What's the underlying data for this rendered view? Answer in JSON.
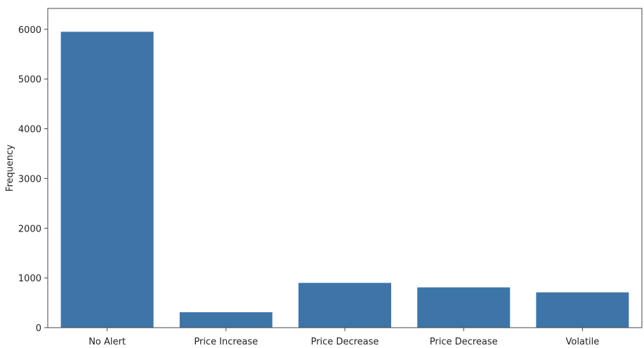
{
  "chart_data": {
    "type": "bar",
    "title": "",
    "xlabel": "",
    "ylabel": "Frequency",
    "categories": [
      "No Alert",
      "Price Increase",
      "Price Decrease",
      "Price Decrease",
      "Volatile"
    ],
    "values": [
      5950,
      310,
      900,
      810,
      710
    ],
    "ylim": [
      0,
      6420
    ],
    "yticks": [
      0,
      1000,
      2000,
      3000,
      4000,
      5000,
      6000
    ],
    "grid": false,
    "bar_color": "#3d75a8"
  }
}
